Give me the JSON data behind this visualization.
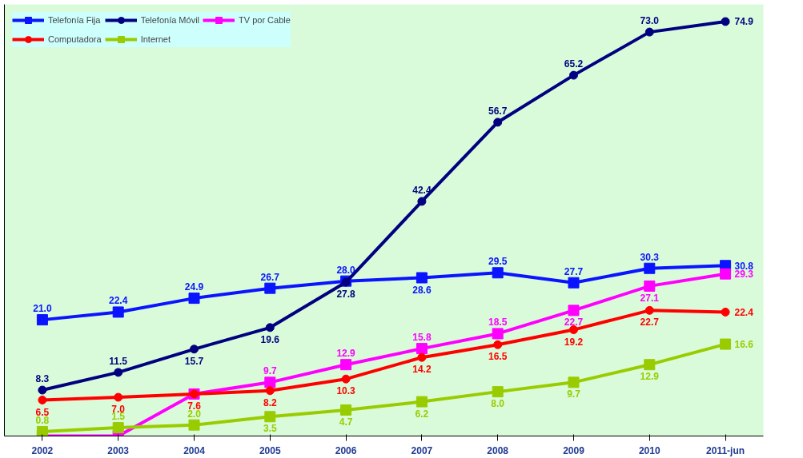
{
  "chart_data": {
    "type": "line",
    "categories": [
      "2002",
      "2003",
      "2004",
      "2005",
      "2006",
      "2007",
      "2008",
      "2009",
      "2010",
      "2011-jun"
    ],
    "ylim": [
      0,
      78
    ],
    "tick_labels": "x",
    "grid": false,
    "legend": "top left",
    "line_style": "solid",
    "series": [
      {
        "name": "Telefonía Fija",
        "color": "#0a14ff",
        "marker": "square",
        "values": [
          21.0,
          22.4,
          24.9,
          26.7,
          28.0,
          28.6,
          29.5,
          27.7,
          30.3,
          30.8
        ],
        "value_labels": [
          "21.0",
          "22.4",
          "24.9",
          "26.7",
          "28.0",
          "28.6",
          "29.5",
          "27.7",
          "30.3",
          "30.8"
        ]
      },
      {
        "name": "Telefonía Móvil",
        "color": "#000080",
        "marker": "circle",
        "values": [
          8.3,
          11.5,
          15.7,
          19.6,
          27.8,
          42.4,
          56.7,
          65.2,
          73.0,
          74.9
        ],
        "value_labels": [
          "8.3",
          "11.5",
          "15.7",
          "19.6",
          "27.8",
          "42.4",
          "56.7",
          "65.2",
          "73.0",
          "74.9"
        ]
      },
      {
        "name": "TV por Cable",
        "color": "#ff00ff",
        "marker": "square",
        "values": [
          0,
          0,
          7.6,
          9.7,
          12.9,
          15.8,
          18.5,
          22.7,
          27.1,
          29.3
        ],
        "value_labels": [
          null,
          null,
          null,
          "9.7",
          "12.9",
          "15.8",
          "18.5",
          "22.7",
          "27.1",
          "29.3"
        ]
      },
      {
        "name": "Computadora",
        "color": "#ff0000",
        "marker": "circle",
        "values": [
          6.5,
          7.0,
          7.6,
          8.2,
          10.3,
          14.2,
          16.5,
          19.2,
          22.7,
          22.4
        ],
        "value_labels": [
          "6.5",
          "7.0",
          "7.6",
          "8.2",
          "10.3",
          "14.2",
          "16.5",
          "19.2",
          "22.7",
          "22.4"
        ]
      },
      {
        "name": "Internet",
        "color": "#99cc00",
        "marker": "square",
        "values": [
          0.8,
          1.5,
          2.0,
          3.5,
          4.7,
          6.2,
          8.0,
          9.7,
          12.9,
          16.6
        ],
        "value_labels": [
          "0.8",
          "1.5",
          "2.0",
          "3.5",
          "4.7",
          "6.2",
          "8.0",
          "9.7",
          "12.9",
          "16.6"
        ]
      }
    ]
  }
}
